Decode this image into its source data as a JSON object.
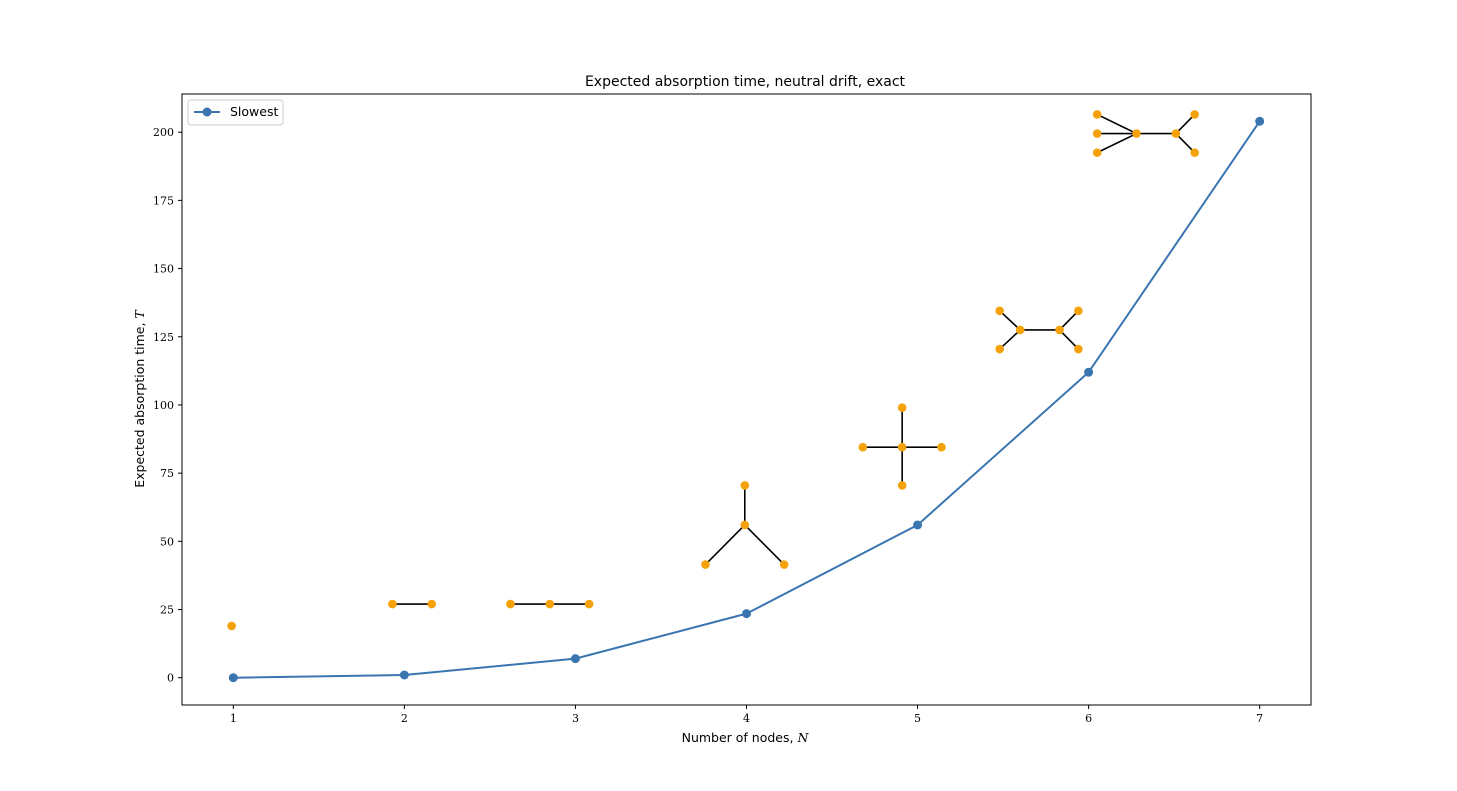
{
  "chart_data": {
    "type": "line",
    "title": "Expected absorption time, neutral drift, exact",
    "xlabel": "Number of nodes, ",
    "xlabel_var": "N",
    "ylabel": "Expected absorption time, ",
    "ylabel_var": "T",
    "xlim": [
      0.7,
      7.3
    ],
    "ylim": [
      -10,
      214
    ],
    "xticks": [
      1,
      2,
      3,
      4,
      5,
      6,
      7
    ],
    "yticks": [
      0,
      25,
      50,
      75,
      100,
      125,
      150,
      175,
      200
    ],
    "grid": false,
    "legend": {
      "placement": "top-left",
      "entries": [
        "Slowest"
      ]
    },
    "series": [
      {
        "name": "Slowest",
        "color": "#3a75b0",
        "x": [
          1,
          2,
          3,
          4,
          5,
          6,
          7
        ],
        "y": [
          0,
          1,
          7,
          23.5,
          56,
          112,
          204
        ]
      }
    ],
    "annotations": {
      "node_color": "#f5a20a",
      "edge_color": "#000000",
      "graphs": [
        {
          "nodes": 1,
          "nodes_xy": [
            [
              0.99,
              19
            ]
          ],
          "edges": []
        },
        {
          "nodes": 2,
          "nodes_xy": [
            [
              1.93,
              27
            ],
            [
              2.16,
              27
            ]
          ],
          "edges": [
            [
              0,
              1
            ]
          ]
        },
        {
          "nodes": 3,
          "nodes_xy": [
            [
              2.62,
              27
            ],
            [
              2.85,
              27
            ],
            [
              3.08,
              27
            ]
          ],
          "edges": [
            [
              0,
              1
            ],
            [
              1,
              2
            ]
          ]
        },
        {
          "nodes": 4,
          "nodes_xy": [
            [
              3.99,
              56
            ],
            [
              3.99,
              70.5
            ],
            [
              3.76,
              41.5
            ],
            [
              4.22,
              41.5
            ]
          ],
          "edges": [
            [
              0,
              1
            ],
            [
              0,
              2
            ],
            [
              0,
              3
            ]
          ]
        },
        {
          "nodes": 5,
          "nodes_xy": [
            [
              4.91,
              84.5
            ],
            [
              4.91,
              99
            ],
            [
              4.91,
              70.5
            ],
            [
              4.68,
              84.5
            ],
            [
              5.14,
              84.5
            ]
          ],
          "edges": [
            [
              0,
              1
            ],
            [
              0,
              2
            ],
            [
              0,
              3
            ],
            [
              0,
              4
            ]
          ]
        },
        {
          "nodes": 6,
          "nodes_xy": [
            [
              5.6,
              127.5
            ],
            [
              5.83,
              127.5
            ],
            [
              5.48,
              134.5
            ],
            [
              5.48,
              120.5
            ],
            [
              5.94,
              134.5
            ],
            [
              5.94,
              120.5
            ]
          ],
          "edges": [
            [
              0,
              1
            ],
            [
              0,
              2
            ],
            [
              0,
              3
            ],
            [
              1,
              4
            ],
            [
              1,
              5
            ]
          ]
        },
        {
          "nodes": 7,
          "nodes_xy": [
            [
              6.28,
              199.5
            ],
            [
              6.51,
              199.5
            ],
            [
              6.05,
              206.5
            ],
            [
              6.05,
              199.5
            ],
            [
              6.05,
              192.5
            ],
            [
              6.62,
              206.5
            ],
            [
              6.62,
              192.5
            ]
          ],
          "edges": [
            [
              0,
              1
            ],
            [
              0,
              2
            ],
            [
              0,
              3
            ],
            [
              0,
              4
            ],
            [
              1,
              5
            ],
            [
              1,
              6
            ]
          ]
        }
      ]
    }
  }
}
